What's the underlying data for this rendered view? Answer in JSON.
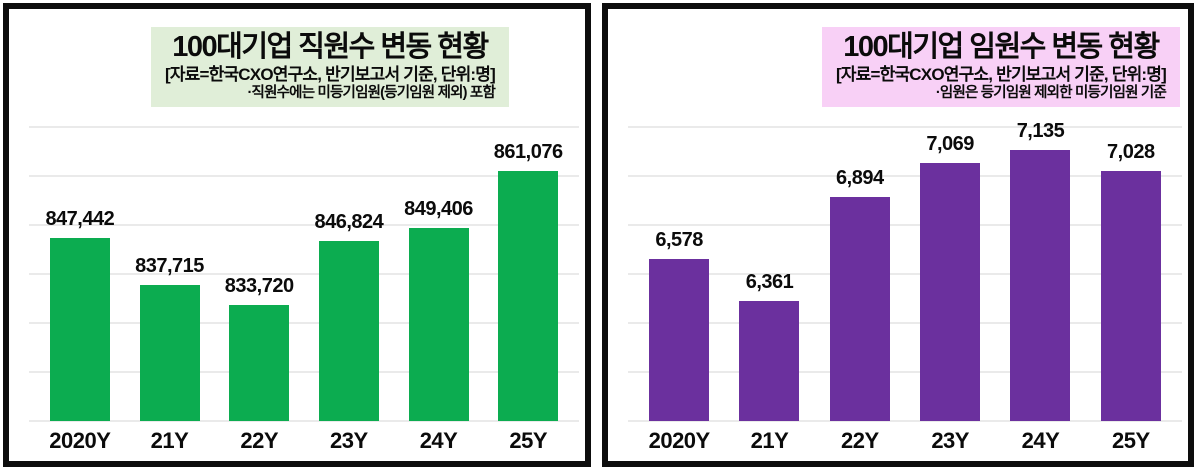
{
  "page": {
    "background": "#ffffff",
    "panel_border_color": "#0d0d0d",
    "gridline_color": "#eaeaea"
  },
  "chart_data": [
    {
      "type": "bar",
      "title": "100대기업 직원수 변동 현황",
      "subtitle": "[자료=한국CXO연구소, 반기보고서 기준, 단위:명]",
      "note": "·직원수에는 미등기임원(등기임원 제외) 포함",
      "categories": [
        "2020Y",
        "21Y",
        "22Y",
        "23Y",
        "24Y",
        "25Y"
      ],
      "values": [
        847442,
        837715,
        833720,
        846824,
        849406,
        861076
      ],
      "value_labels": [
        "847,442",
        "837,715",
        "833,720",
        "846,824",
        "849,406",
        "861,076"
      ],
      "ylim": [
        810000,
        870000
      ],
      "grid": true,
      "gridline_count": 7,
      "legend": false,
      "bar_color": "#0cac50",
      "title_bg": "#e0eed8"
    },
    {
      "type": "bar",
      "title": "100대기업 임원수 변동 현황",
      "subtitle": "[자료=한국CXO연구소, 반기보고서 기준, 단위:명]",
      "note": "·임원은 등기임원 제외한 미등기임원 기준",
      "categories": [
        "2020Y",
        "21Y",
        "22Y",
        "23Y",
        "24Y",
        "25Y"
      ],
      "values": [
        6578,
        6361,
        6894,
        7069,
        7135,
        7028
      ],
      "value_labels": [
        "6,578",
        "6,361",
        "6,894",
        "7,069",
        "7,135",
        "7,028"
      ],
      "ylim": [
        5750,
        7250
      ],
      "grid": true,
      "gridline_count": 7,
      "legend": false,
      "bar_color": "#6b309e",
      "title_bg": "#f8d0f6"
    }
  ]
}
